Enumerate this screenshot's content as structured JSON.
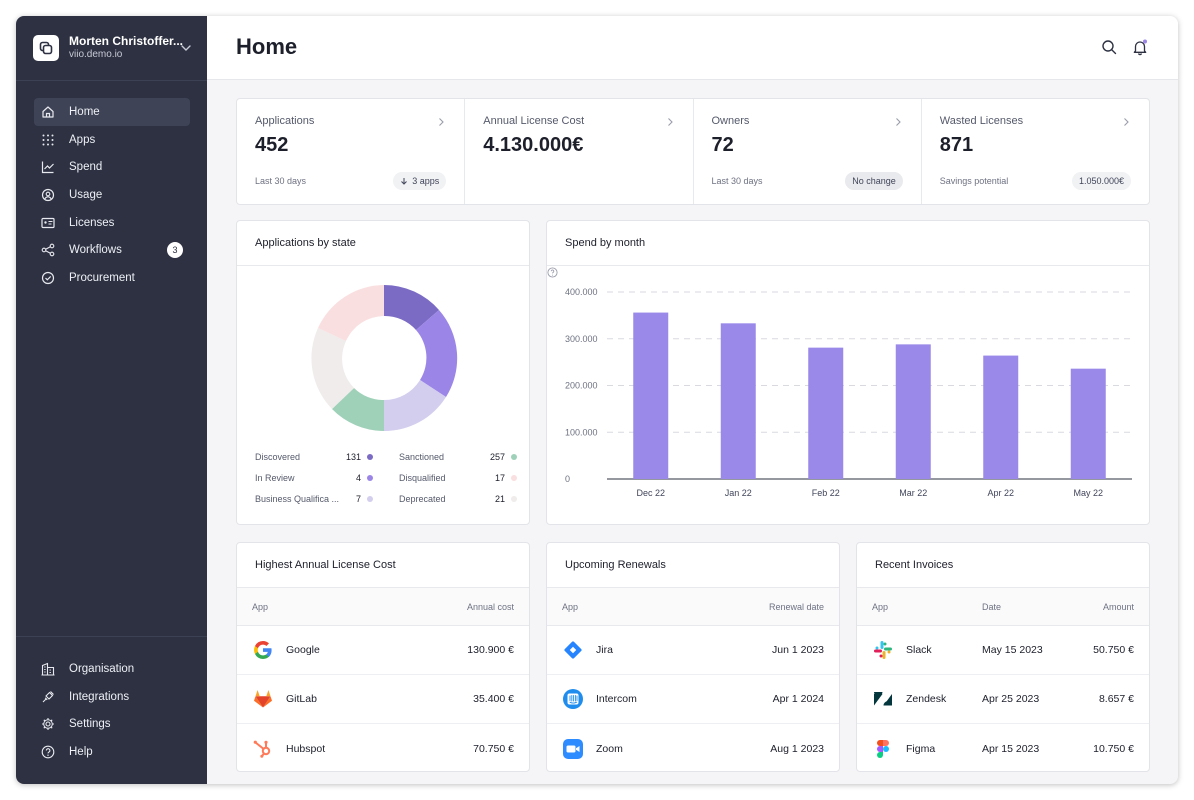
{
  "org": {
    "name": "Morten Christoffer...",
    "domain": "viio.demo.io"
  },
  "nav": {
    "items": [
      {
        "label": "Home",
        "icon": "home-icon"
      },
      {
        "label": "Apps",
        "icon": "grid-icon"
      },
      {
        "label": "Spend",
        "icon": "chart-line-icon"
      },
      {
        "label": "Usage",
        "icon": "usage-icon"
      },
      {
        "label": "Licenses",
        "icon": "id-card-icon"
      },
      {
        "label": "Workflows",
        "icon": "share-icon",
        "badge": "3"
      },
      {
        "label": "Procurement",
        "icon": "check-badge-icon"
      }
    ],
    "bottom": [
      {
        "label": "Organisation",
        "icon": "building-icon"
      },
      {
        "label": "Integrations",
        "icon": "plug-icon"
      },
      {
        "label": "Settings",
        "icon": "gear-icon"
      },
      {
        "label": "Help",
        "icon": "help-icon"
      }
    ]
  },
  "header": {
    "title": "Home"
  },
  "stats": [
    {
      "label": "Applications",
      "value": "452",
      "sub": "Last 30 days",
      "pill": "3 apps"
    },
    {
      "label": "Annual License Cost",
      "value": "4.130.000€",
      "sub": "",
      "pill": ""
    },
    {
      "label": "Owners",
      "value": "72",
      "sub": "Last 30 days",
      "pill": "No change"
    },
    {
      "label": "Wasted Licenses",
      "value": "871",
      "sub": "Savings potential",
      "pill": "1.050.000€"
    }
  ],
  "apps_by_state": {
    "title": "Applications by state",
    "legend": [
      {
        "name": "Discovered",
        "count": "131",
        "color": "#7b6bc4"
      },
      {
        "name": "Sanctioned",
        "count": "257",
        "color": "#9fd1b9"
      },
      {
        "name": "In Review",
        "count": "4",
        "color": "#9b86e8"
      },
      {
        "name": "Disqualified",
        "count": "17",
        "color": "#fadfe0"
      },
      {
        "name": "Business Qualifica ...",
        "count": "7",
        "color": "#d3cdee"
      },
      {
        "name": "Deprecated",
        "count": "21",
        "color": "#efeceb"
      }
    ]
  },
  "chart_data": {
    "type": "bar",
    "title": "Spend by month",
    "categories": [
      "Dec 22",
      "Jan 22",
      "Feb 22",
      "Mar 22",
      "Apr 22",
      "May 22"
    ],
    "values": [
      356000,
      333000,
      281000,
      288000,
      264000,
      236000
    ],
    "ylim": [
      0,
      400000
    ],
    "yticks": [
      "0",
      "100.000",
      "200.000",
      "300.000",
      "400.000"
    ],
    "bar_color": "#9a89e8",
    "grid": true
  },
  "highest_cost": {
    "title": "Highest Annual License Cost",
    "columns": [
      "App",
      "Annual cost"
    ],
    "rows": [
      {
        "app": "Google",
        "icon": "google-icon",
        "value": "130.900 €"
      },
      {
        "app": "GitLab",
        "icon": "gitlab-icon",
        "value": "35.400 €"
      },
      {
        "app": "Hubspot",
        "icon": "hubspot-icon",
        "value": "70.750 €"
      }
    ]
  },
  "renewals": {
    "title": "Upcoming Renewals",
    "columns": [
      "App",
      "Renewal date"
    ],
    "rows": [
      {
        "app": "Jira",
        "icon": "jira-icon",
        "value": "Jun 1 2023"
      },
      {
        "app": "Intercom",
        "icon": "intercom-icon",
        "value": "Apr 1 2024"
      },
      {
        "app": "Zoom",
        "icon": "zoom-icon",
        "value": "Aug 1 2023"
      }
    ]
  },
  "invoices": {
    "title": "Recent Invoices",
    "columns": [
      "App",
      "Date",
      "Amount"
    ],
    "rows": [
      {
        "app": "Slack",
        "icon": "slack-icon",
        "date": "May 15 2023",
        "amount": "50.750 €"
      },
      {
        "app": "Zendesk",
        "icon": "zendesk-icon",
        "date": "Apr 25 2023",
        "amount": "8.657 €"
      },
      {
        "app": "Figma",
        "icon": "figma-icon",
        "date": "Apr 15 2023",
        "amount": "10.750 €"
      }
    ]
  }
}
